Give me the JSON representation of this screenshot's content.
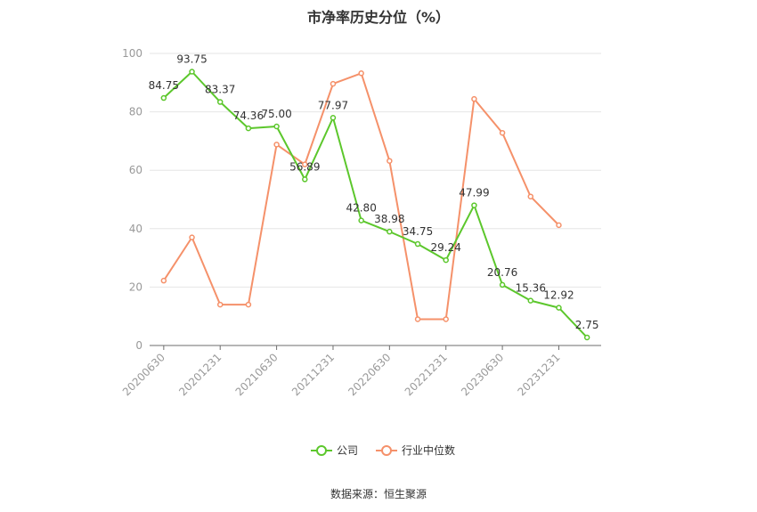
{
  "chart_data": {
    "type": "line",
    "title": "市净率历史分位（%）",
    "x": [
      "20200630",
      "20200930",
      "20201231",
      "20210331",
      "20210630",
      "20210930",
      "20211231",
      "20220331",
      "20220630",
      "20220930",
      "20221231",
      "20230331",
      "20230630",
      "20230930",
      "20231231",
      "20240331"
    ],
    "x_tick_labels": [
      "20200630",
      "20201231",
      "20210630",
      "20211231",
      "20220630",
      "20221231",
      "20230630",
      "20231231"
    ],
    "ylim": [
      0,
      100
    ],
    "y_ticks": [
      0,
      20,
      40,
      60,
      80,
      100
    ],
    "grid": true,
    "legend_position": "bottom-center",
    "series": [
      {
        "name": "公司",
        "color": "#5cc72c",
        "show_labels": true,
        "values": [
          84.75,
          93.75,
          83.37,
          74.36,
          75.0,
          56.89,
          77.97,
          42.8,
          38.98,
          34.75,
          29.24,
          47.99,
          20.76,
          15.36,
          12.92,
          2.75
        ],
        "labels": [
          "84.75",
          "93.75",
          "83.37",
          "74.36",
          "75.00",
          "56.89",
          "77.97",
          "42.80",
          "38.98",
          "34.75",
          "29.24",
          "47.99",
          "20.76",
          "15.36",
          "12.92",
          "2.75"
        ]
      },
      {
        "name": "行业中位数",
        "color": "#f5916a",
        "show_labels": false,
        "values": [
          22.2,
          37.0,
          14.0,
          14.0,
          68.8,
          62.0,
          89.6,
          93.2,
          63.2,
          9.0,
          9.0,
          84.4,
          72.8,
          51.0,
          41.2,
          null
        ]
      }
    ]
  },
  "footer": {
    "source": "数据来源：恒生聚源"
  }
}
